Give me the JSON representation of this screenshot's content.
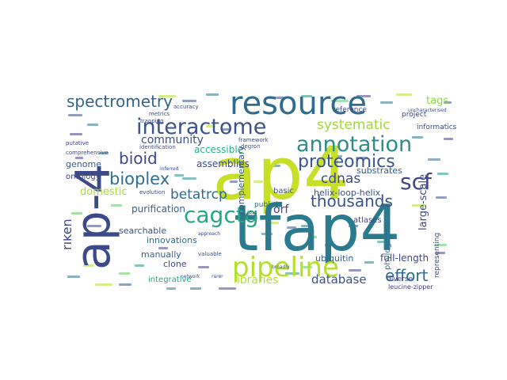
{
  "words": [
    {
      "text": "ap4",
      "color": "#c8df29"
    },
    {
      "text": "tfap4",
      "color": "#2a7b8e"
    },
    {
      "text": "ap-4",
      "color": "#3d4a89"
    },
    {
      "text": "resource",
      "color": "#2f6b8e"
    },
    {
      "text": "interactome",
      "color": "#3b528b"
    },
    {
      "text": "pipeline",
      "color": "#b5de2b"
    },
    {
      "text": "annotation",
      "color": "#2c8d8a"
    },
    {
      "text": "proteomics",
      "color": "#39568c"
    },
    {
      "text": "cagctg",
      "color": "#26a784"
    },
    {
      "text": "spectrometry",
      "color": "#33648d"
    },
    {
      "text": "systematic",
      "color": "#a2da37"
    },
    {
      "text": "scf",
      "color": "#414487"
    },
    {
      "text": "thousands",
      "color": "#3b528b"
    },
    {
      "text": "bioplex",
      "color": "#2d708e"
    },
    {
      "text": "bioid",
      "color": "#3f4788"
    },
    {
      "text": "betatrcp",
      "color": "#31688e"
    },
    {
      "text": "cdnas",
      "color": "#3e4a89"
    },
    {
      "text": "effort",
      "color": "#2e6d8e"
    },
    {
      "text": "database",
      "color": "#3b528b"
    },
    {
      "text": "riken",
      "color": "#3f4788"
    },
    {
      "text": "libraries",
      "color": "#b8de29"
    },
    {
      "text": "orf",
      "color": "#433e85"
    },
    {
      "text": "community",
      "color": "#3c4f8a"
    },
    {
      "text": "domestic",
      "color": "#aadc32"
    },
    {
      "text": "accessible",
      "color": "#29af7f"
    },
    {
      "text": "purification",
      "color": "#34618d"
    },
    {
      "text": "innovations",
      "color": "#2c728e"
    },
    {
      "text": "large-scale",
      "color": "#3e4989"
    },
    {
      "text": "full-length",
      "color": "#3f4788"
    },
    {
      "text": "helix-loop-helix",
      "color": "#3b528b"
    },
    {
      "text": "substrates",
      "color": "#365c8d"
    },
    {
      "text": "ubiquitin",
      "color": "#32658e"
    },
    {
      "text": "tags",
      "color": "#8ed645"
    },
    {
      "text": "assemblies",
      "color": "#3e4c8a"
    },
    {
      "text": "searchable",
      "color": "#39558c"
    },
    {
      "text": "manually",
      "color": "#355f8d"
    },
    {
      "text": "clone",
      "color": "#3f4889"
    },
    {
      "text": "integrative",
      "color": "#22a884"
    },
    {
      "text": "basic",
      "color": "#3b528b"
    },
    {
      "text": "publicly",
      "color": "#2f6c8e"
    },
    {
      "text": "complementary",
      "color": "#375a8c"
    },
    {
      "text": "genome",
      "color": "#38598c"
    },
    {
      "text": "ontology",
      "color": "#3f4788"
    },
    {
      "text": "reference",
      "color": "#3e4c8a"
    },
    {
      "text": "atlases",
      "color": "#3f4788"
    },
    {
      "text": "diverse",
      "color": "#3e4989"
    },
    {
      "text": "project",
      "color": "#3f4788"
    },
    {
      "text": "informatics",
      "color": "#3e4c8a"
    },
    {
      "text": "leucine-zipper",
      "color": "#443a83"
    },
    {
      "text": "phylogenetic",
      "color": "#2e6f8e"
    },
    {
      "text": "representing",
      "color": "#3c508b"
    },
    {
      "text": "identification",
      "color": "#3e4c8a"
    },
    {
      "text": "accuracy",
      "color": "#3f4889"
    },
    {
      "text": "metrics",
      "color": "#3e4c8a"
    },
    {
      "text": "trapping",
      "color": "#3b528b"
    },
    {
      "text": "comprehensive",
      "color": "#3f4788"
    },
    {
      "text": "evolution",
      "color": "#3e4c8a"
    },
    {
      "text": "valuable",
      "color": "#3e4c8a"
    },
    {
      "text": "framework",
      "color": "#3f4788"
    },
    {
      "text": "degron",
      "color": "#3b528b"
    },
    {
      "text": "approach",
      "color": "#3f4788"
    },
    {
      "text": "motifs",
      "color": "#3f4788"
    },
    {
      "text": "broadly",
      "color": "#3e4c8a"
    },
    {
      "text": "network",
      "color": "#3e4c8a"
    },
    {
      "text": "rarer",
      "color": "#3e4c8a"
    },
    {
      "text": "uncharacterised",
      "color": "#3e4c8a"
    },
    {
      "text": "putative",
      "color": "#3f4788"
    },
    {
      "text": "inferred",
      "color": "#3e4c8a"
    }
  ]
}
